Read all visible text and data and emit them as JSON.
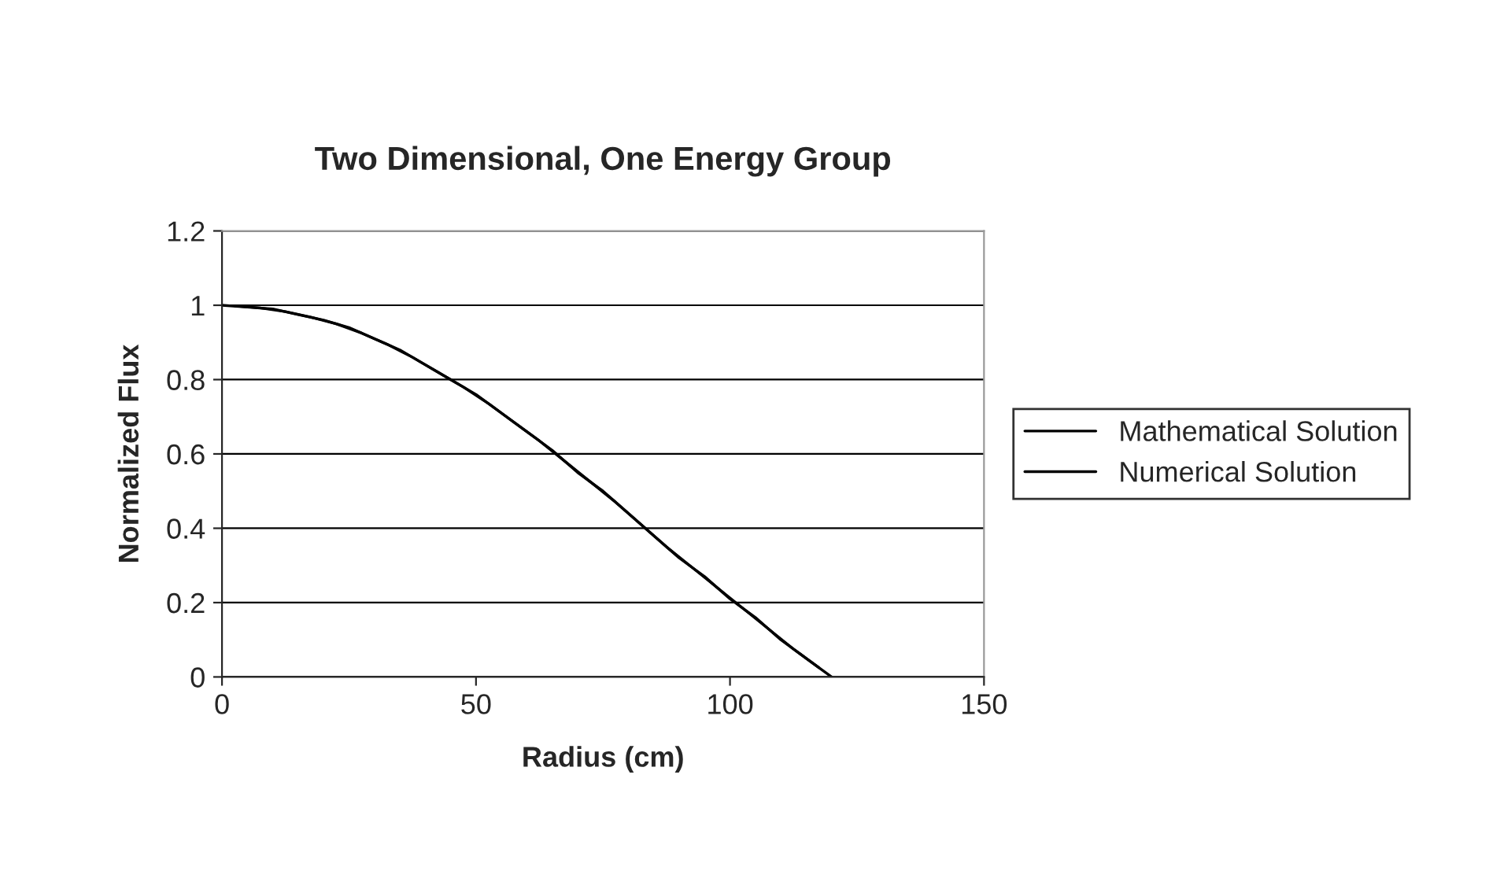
{
  "chart_data": {
    "type": "line",
    "title": "Two Dimensional, One Energy Group",
    "xlabel": "Radius (cm)",
    "ylabel": "Normalized Flux",
    "x": [
      0,
      5,
      10,
      15,
      20,
      25,
      30,
      35,
      40,
      45,
      50,
      55,
      60,
      65,
      70,
      75,
      80,
      85,
      90,
      95,
      100,
      105,
      110,
      115,
      120
    ],
    "series": [
      {
        "name": "Mathematical Solution",
        "color": "#000000",
        "values": [
          1.0,
          0.995,
          0.99,
          0.975,
          0.96,
          0.94,
          0.91,
          0.88,
          0.84,
          0.8,
          0.76,
          0.71,
          0.66,
          0.61,
          0.55,
          0.5,
          0.44,
          0.38,
          0.32,
          0.27,
          0.21,
          0.16,
          0.1,
          0.05,
          0.0
        ]
      },
      {
        "name": "Numerical Solution",
        "color": "#000000",
        "x": [
          2.5,
          7.5,
          12.5,
          17.5,
          22.5,
          27.5,
          32.5,
          37.5,
          42.5,
          47.5,
          52.5,
          57.5,
          62.5,
          67.5,
          72.5,
          77.5,
          82.5,
          87.5,
          92.5,
          97.5,
          102.5,
          107.5,
          112.5,
          117.5
        ],
        "values": [
          0.998,
          0.993,
          0.983,
          0.968,
          0.95,
          0.925,
          0.895,
          0.86,
          0.82,
          0.78,
          0.735,
          0.685,
          0.635,
          0.58,
          0.525,
          0.47,
          0.41,
          0.35,
          0.295,
          0.24,
          0.185,
          0.13,
          0.075,
          0.025
        ]
      }
    ],
    "xlim": [
      0,
      150
    ],
    "xticks": [
      0,
      50,
      100,
      150
    ],
    "ylim": [
      0,
      1.2
    ],
    "yticks": [
      0,
      0.2,
      0.4,
      0.6,
      0.8,
      1,
      1.2
    ],
    "grid": "y",
    "legend": "right",
    "marker": "none",
    "line_style": "solid"
  }
}
